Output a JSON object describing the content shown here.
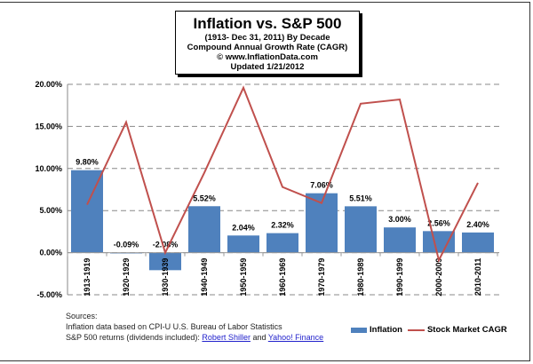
{
  "chart_data": {
    "type": "bar",
    "title": "Inflation  vs. S&P 500",
    "subtitle": [
      "(1913- Dec 31, 2011) By Decade",
      "Compound Annual Growth Rate (CAGR)",
      "© www.InflationData.com",
      "Updated 1/21/2012"
    ],
    "categories": [
      "1913-1919",
      "1920-1929",
      "1930-1939",
      "1940-1949",
      "1950-1959",
      "1960-1969",
      "1970-1979",
      "1980-1989",
      "1990-1999",
      "2000-2009",
      "2010-2011"
    ],
    "series": [
      {
        "name": "Inflation",
        "type": "bar",
        "color": "#4f81bd",
        "values": [
          9.8,
          -0.09,
          -2.08,
          5.52,
          2.04,
          2.32,
          7.06,
          5.51,
          3.0,
          2.56,
          2.4
        ],
        "labels": [
          "9.80%",
          "-0.09%",
          "-2.08%",
          "5.52%",
          "2.04%",
          "2.32%",
          "7.06%",
          "5.51%",
          "3.00%",
          "2.56%",
          "2.40%"
        ]
      },
      {
        "name": "Stock Market CAGR",
        "type": "line",
        "color": "#c0504d",
        "values": [
          5.7,
          15.5,
          0.0,
          9.5,
          19.6,
          7.8,
          5.9,
          17.7,
          18.2,
          -0.9,
          8.3
        ]
      }
    ],
    "ylim": [
      -5,
      20
    ],
    "yticks": [
      "-5.00%",
      "0.00%",
      "5.00%",
      "10.00%",
      "15.00%",
      "20.00%"
    ],
    "grid": true,
    "legend": "bottom-right"
  },
  "sources": {
    "heading": "Sources:",
    "line1": "Inflation data based on CPI-U U.S. Bureau of Labor Statistics",
    "line2_prefix": "S&P 500 returns (dividends included): ",
    "link1": "Robert Shiller",
    "and": " and ",
    "link2": "Yahoo! Finance"
  }
}
